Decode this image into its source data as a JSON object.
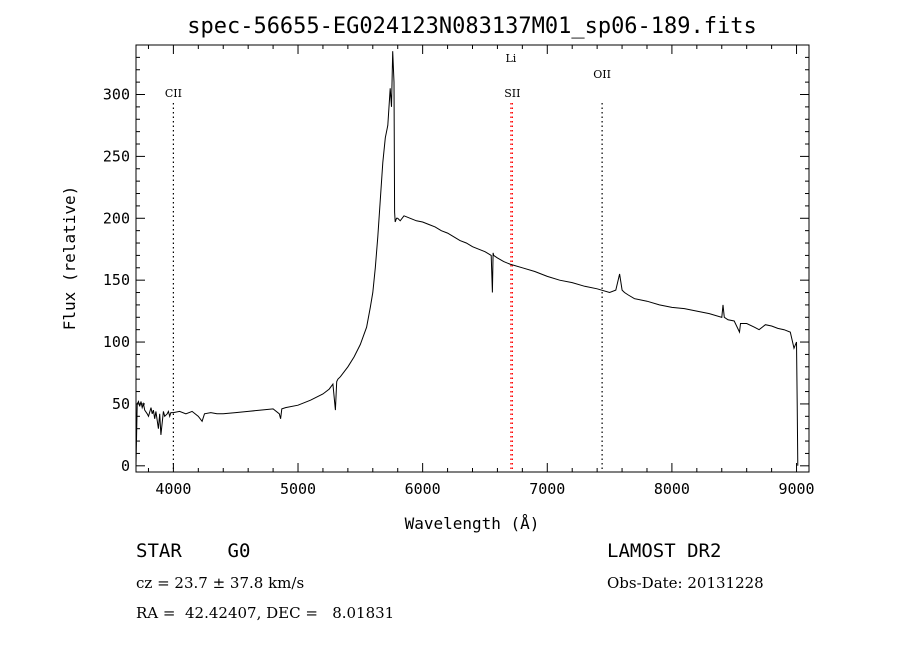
{
  "chart_data": {
    "type": "line",
    "title": "spec-56655-EG024123N083137M01_sp06-189.fits",
    "xlabel": "Wavelength (Å)",
    "ylabel": "Flux (relative)",
    "xlim": [
      3700,
      9100
    ],
    "ylim": [
      -5,
      340
    ],
    "xticks": [
      4000,
      5000,
      6000,
      7000,
      8000,
      9000
    ],
    "yticks": [
      0,
      50,
      100,
      150,
      200,
      250,
      300
    ],
    "grid": false,
    "legend": "none",
    "line_color": "#000000",
    "marker_color_normal": "#000000",
    "marker_color_highlight": "#ff0000",
    "markers": [
      {
        "label": "CII",
        "x": 4000,
        "highlight": false
      },
      {
        "label": "Li",
        "x": 6708,
        "highlight": true
      },
      {
        "label": "SII",
        "x": 6720,
        "highlight": true
      },
      {
        "label": "OII",
        "x": 7440,
        "highlight": false
      }
    ],
    "series": [
      {
        "x": [
          3700,
          3710,
          3720,
          3730,
          3740,
          3750,
          3760,
          3770,
          3790,
          3800,
          3820,
          3830,
          3840,
          3850,
          3860,
          3880,
          3890,
          3900,
          3920,
          3930,
          3950,
          3960,
          3970,
          3980,
          4000,
          4050,
          4100,
          4150,
          4200,
          4230,
          4250,
          4300,
          4350,
          4400,
          4500,
          4600,
          4700,
          4800,
          4850,
          4860,
          4870,
          4900,
          5000,
          5100,
          5200,
          5250,
          5280,
          5300,
          5310,
          5320,
          5340,
          5400,
          5450,
          5500,
          5550,
          5580,
          5600,
          5620,
          5640,
          5660,
          5680,
          5700,
          5720,
          5740,
          5750,
          5760,
          5770,
          5775,
          5780,
          5790,
          5800,
          5820,
          5850,
          5900,
          5950,
          6000,
          6050,
          6100,
          6150,
          6200,
          6250,
          6300,
          6350,
          6400,
          6450,
          6500,
          6550,
          6560,
          6565,
          6570,
          6600,
          6650,
          6700,
          6800,
          6900,
          7000,
          7100,
          7200,
          7300,
          7400,
          7500,
          7550,
          7580,
          7600,
          7620,
          7650,
          7700,
          7800,
          7900,
          8000,
          8100,
          8200,
          8300,
          8400,
          8410,
          8420,
          8450,
          8500,
          8542,
          8550,
          8600,
          8662,
          8700,
          8750,
          8800,
          8850,
          8900,
          8950,
          8980,
          9000,
          9005,
          9010
        ],
        "y": [
          0,
          50,
          52,
          48,
          52,
          47,
          50,
          45,
          42,
          40,
          47,
          42,
          45,
          38,
          44,
          30,
          42,
          25,
          44,
          40,
          42,
          44,
          40,
          43,
          43,
          44,
          42,
          44,
          40,
          36,
          42,
          43,
          42,
          42,
          43,
          44,
          45,
          46,
          42,
          38,
          46,
          47,
          49,
          53,
          58,
          62,
          66,
          45,
          68,
          70,
          72,
          80,
          88,
          98,
          112,
          128,
          140,
          160,
          185,
          215,
          245,
          265,
          275,
          305,
          290,
          335,
          310,
          205,
          197,
          200,
          200,
          198,
          202,
          200,
          198,
          197,
          195,
          193,
          190,
          188,
          185,
          182,
          180,
          177,
          175,
          173,
          170,
          140,
          172,
          170,
          168,
          165,
          163,
          160,
          157,
          153,
          150,
          148,
          145,
          143,
          140,
          142,
          155,
          142,
          140,
          138,
          135,
          133,
          130,
          128,
          127,
          125,
          123,
          120,
          130,
          120,
          118,
          117,
          108,
          115,
          115,
          112,
          110,
          114,
          113,
          111,
          110,
          108,
          95,
          100,
          50,
          0
        ]
      }
    ]
  },
  "info": {
    "class_line": "STAR    G0",
    "survey": "LAMOST DR2",
    "cz_line": "cz = 23.7 ± 37.8 km/s",
    "obs_date": "Obs-Date: 20131228",
    "coords_line": "RA =  42.42407, DEC =   8.01831"
  }
}
